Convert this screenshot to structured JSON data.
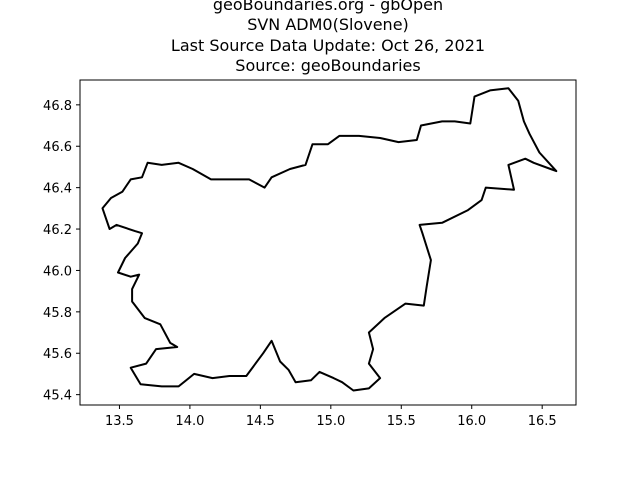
{
  "title_lines": [
    "geoBoundaries.org - gbOpen",
    "SVN ADM0(Slovene)",
    "Last Source Data Update: Oct 26, 2021",
    "Source: geoBoundaries"
  ],
  "chart_data": {
    "type": "map",
    "x_ticks": [
      13.5,
      14.0,
      14.5,
      15.0,
      15.5,
      16.0,
      16.5
    ],
    "y_ticks": [
      45.4,
      45.6,
      45.8,
      46.0,
      46.2,
      46.4,
      46.6,
      46.8
    ],
    "xlim": [
      13.22,
      16.74
    ],
    "ylim": [
      45.35,
      46.92
    ],
    "grid": false,
    "boundary_color": "#000000",
    "boundary": [
      [
        13.58,
        45.53
      ],
      [
        13.65,
        45.45
      ],
      [
        13.8,
        45.44
      ],
      [
        13.92,
        45.44
      ],
      [
        14.03,
        45.5
      ],
      [
        14.16,
        45.48
      ],
      [
        14.28,
        45.49
      ],
      [
        14.4,
        45.49
      ],
      [
        14.52,
        45.6
      ],
      [
        14.58,
        45.66
      ],
      [
        14.64,
        45.56
      ],
      [
        14.7,
        45.52
      ],
      [
        14.75,
        45.46
      ],
      [
        14.86,
        45.47
      ],
      [
        14.92,
        45.51
      ],
      [
        15.02,
        45.48
      ],
      [
        15.08,
        45.46
      ],
      [
        15.16,
        45.42
      ],
      [
        15.27,
        45.43
      ],
      [
        15.35,
        45.48
      ],
      [
        15.27,
        45.55
      ],
      [
        15.3,
        45.62
      ],
      [
        15.27,
        45.7
      ],
      [
        15.38,
        45.77
      ],
      [
        15.53,
        45.84
      ],
      [
        15.66,
        45.83
      ],
      [
        15.68,
        45.92
      ],
      [
        15.71,
        46.05
      ],
      [
        15.65,
        46.18
      ],
      [
        15.63,
        46.22
      ],
      [
        15.79,
        46.23
      ],
      [
        15.97,
        46.29
      ],
      [
        16.07,
        46.34
      ],
      [
        16.1,
        46.4
      ],
      [
        16.3,
        46.39
      ],
      [
        16.26,
        46.51
      ],
      [
        16.38,
        46.54
      ],
      [
        16.44,
        46.52
      ],
      [
        16.56,
        46.49
      ],
      [
        16.6,
        46.48
      ],
      [
        16.48,
        46.57
      ],
      [
        16.41,
        46.66
      ],
      [
        16.37,
        46.72
      ],
      [
        16.33,
        46.82
      ],
      [
        16.26,
        46.88
      ],
      [
        16.13,
        46.87
      ],
      [
        16.02,
        46.84
      ],
      [
        15.99,
        46.71
      ],
      [
        15.88,
        46.72
      ],
      [
        15.79,
        46.72
      ],
      [
        15.64,
        46.7
      ],
      [
        15.61,
        46.63
      ],
      [
        15.48,
        46.62
      ],
      [
        15.35,
        46.64
      ],
      [
        15.2,
        46.65
      ],
      [
        15.06,
        46.65
      ],
      [
        14.98,
        46.61
      ],
      [
        14.87,
        46.61
      ],
      [
        14.82,
        46.51
      ],
      [
        14.71,
        46.49
      ],
      [
        14.58,
        46.45
      ],
      [
        14.53,
        46.4
      ],
      [
        14.42,
        46.44
      ],
      [
        14.28,
        46.44
      ],
      [
        14.15,
        46.44
      ],
      [
        14.02,
        46.49
      ],
      [
        13.92,
        46.52
      ],
      [
        13.8,
        46.51
      ],
      [
        13.7,
        46.52
      ],
      [
        13.66,
        46.45
      ],
      [
        13.58,
        46.44
      ],
      [
        13.52,
        46.38
      ],
      [
        13.44,
        46.35
      ],
      [
        13.38,
        46.3
      ],
      [
        13.43,
        46.2
      ],
      [
        13.48,
        46.22
      ],
      [
        13.61,
        46.19
      ],
      [
        13.66,
        46.18
      ],
      [
        13.63,
        46.13
      ],
      [
        13.54,
        46.06
      ],
      [
        13.49,
        45.99
      ],
      [
        13.58,
        45.97
      ],
      [
        13.64,
        45.98
      ],
      [
        13.59,
        45.91
      ],
      [
        13.59,
        45.85
      ],
      [
        13.68,
        45.77
      ],
      [
        13.79,
        45.74
      ],
      [
        13.86,
        45.65
      ],
      [
        13.91,
        45.63
      ],
      [
        13.76,
        45.62
      ],
      [
        13.69,
        45.55
      ],
      [
        13.58,
        45.53
      ]
    ]
  }
}
